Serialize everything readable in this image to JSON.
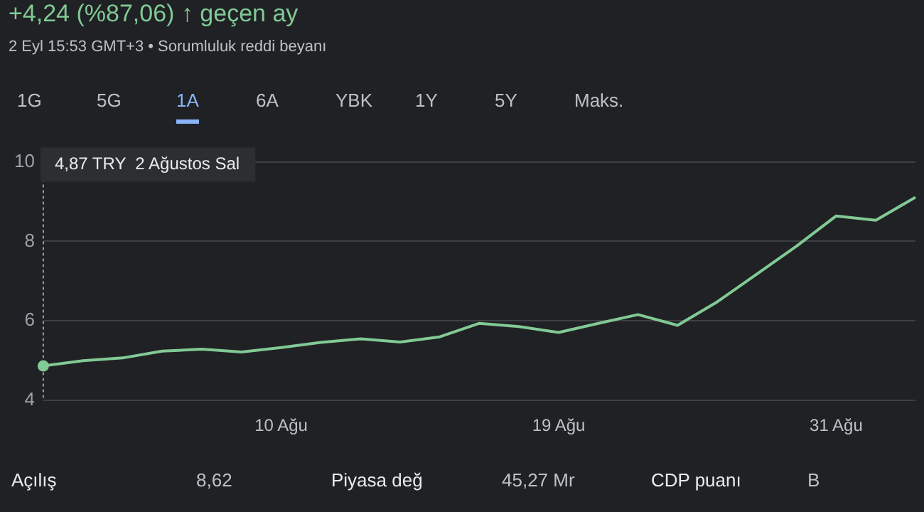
{
  "chart_data": {
    "type": "line",
    "title": "+4,24 (%87,06) ↑ geçen ay",
    "subtitle": "2 Eyl 15:53 GMT+3 • Sorumluluk reddi beyanı",
    "categories": [
      null,
      null,
      null,
      null,
      null,
      null,
      "10 Ağu",
      null,
      null,
      null,
      null,
      null,
      null,
      "19 Ağu",
      null,
      null,
      null,
      null,
      null,
      null,
      "31 Ağu",
      null,
      null
    ],
    "series": [
      {
        "color": "#81c995",
        "values": [
          4.87,
          5.0,
          5.07,
          5.24,
          5.29,
          5.22,
          5.33,
          5.46,
          5.55,
          5.47,
          5.6,
          5.94,
          5.86,
          5.71,
          5.94,
          6.16,
          5.89,
          6.48,
          7.18,
          7.88,
          8.64,
          8.53,
          9.11
        ]
      }
    ],
    "ylim": [
      4,
      10
    ],
    "yticks": [
      4,
      6,
      8,
      10
    ],
    "grid": "y",
    "legend": false,
    "marker": "none",
    "line_style": "solid",
    "annotations": [
      "4,87 TRY  2 Ağustos Sal",
      "1G",
      "5G",
      "1A",
      "6A",
      "YBK",
      "1Y",
      "5Y",
      "Maks.",
      "Açılış",
      "8,62",
      "Piyasa değ",
      "45,27 Mr",
      "CDP puanı",
      "B"
    ]
  }
}
